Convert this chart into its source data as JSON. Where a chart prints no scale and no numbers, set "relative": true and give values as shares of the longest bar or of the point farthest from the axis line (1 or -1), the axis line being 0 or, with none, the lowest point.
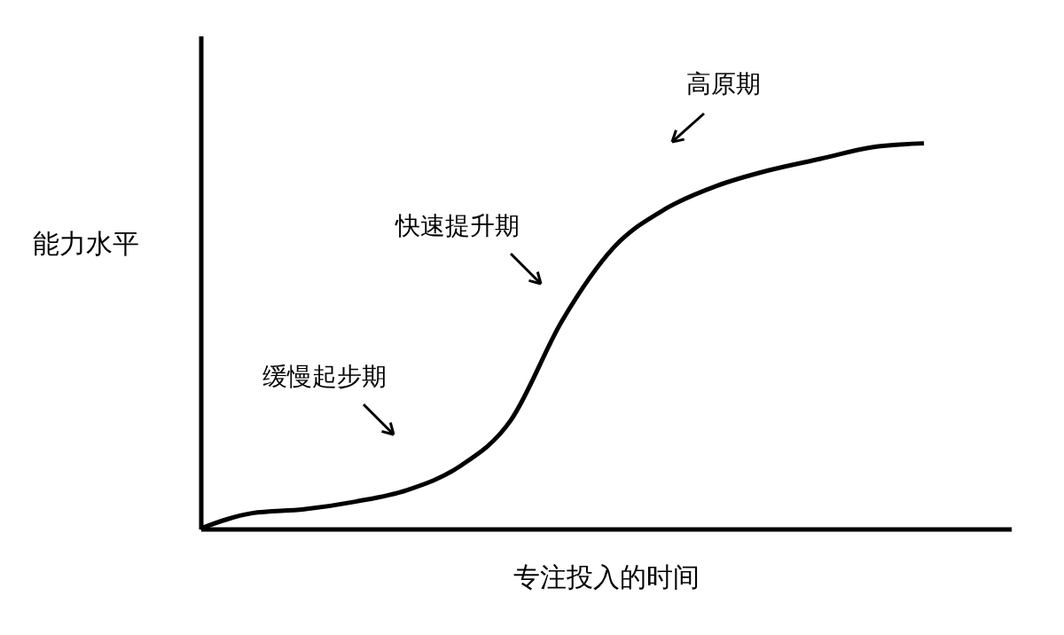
{
  "chart_data": {
    "type": "line",
    "relative": true,
    "xlabel": "专注投入的时间",
    "ylabel": "能力水平",
    "categories": [
      null,
      null,
      null,
      null,
      null,
      null,
      null,
      null,
      null,
      null,
      null,
      null,
      null,
      null,
      null
    ],
    "series": [
      {
        "color": "#000000",
        "values": [
          0,
          0.04,
          0.05,
          0.07,
          0.1,
          0.16,
          0.28,
          0.54,
          0.73,
          0.83,
          0.89,
          0.93,
          0.96,
          0.99,
          1
        ]
      }
    ],
    "annotations": [
      "高原期",
      "快速提升期",
      "缓慢起步期"
    ],
    "grid": false,
    "tick_labels": false,
    "marker": "none",
    "line_style": "solid"
  }
}
